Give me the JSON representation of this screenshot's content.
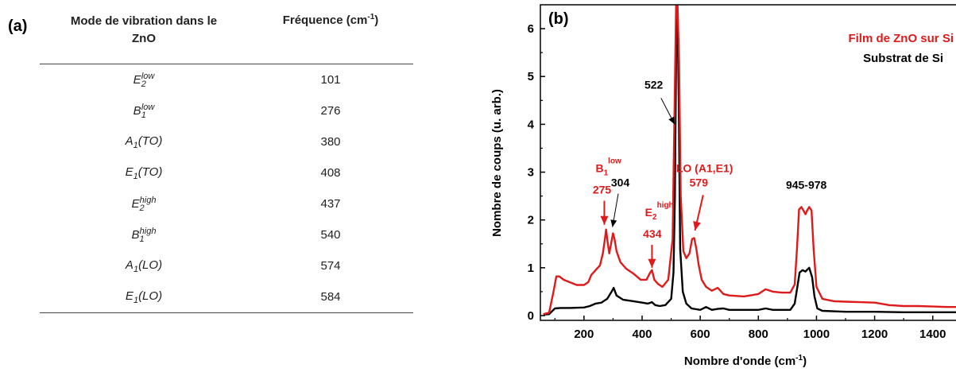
{
  "table_panel": {
    "panel_label": "(a)",
    "header_mode_line1": "Mode de vibration dans le",
    "header_mode_line2": "ZnO",
    "header_freq": "Fréquence (cm",
    "header_freq_sup": "-1",
    "header_freq_close": ")",
    "rows": [
      {
        "base": "E",
        "sub": "2",
        "sup": "low",
        "rest": "",
        "freq": "101"
      },
      {
        "base": "B",
        "sub": "1",
        "sup": "low",
        "rest": "",
        "freq": "276"
      },
      {
        "base": "A",
        "sub": "1",
        "sup": "",
        "rest": "(TO)",
        "freq": "380"
      },
      {
        "base": "E",
        "sub": "1",
        "sup": "",
        "rest": "(TO)",
        "freq": "408"
      },
      {
        "base": "E",
        "sub": "2",
        "sup": "high",
        "rest": "",
        "freq": "437"
      },
      {
        "base": "B",
        "sub": "1",
        "sup": "high",
        "rest": "",
        "freq": "540"
      },
      {
        "base": "A",
        "sub": "1",
        "sup": "",
        "rest": "(LO)",
        "freq": "574"
      },
      {
        "base": "E",
        "sub": "1",
        "sup": "",
        "rest": "(LO)",
        "freq": "584"
      }
    ]
  },
  "chart_data": {
    "type": "line",
    "panel_label": "(b)",
    "xlabel": "Nombre d'onde (cm",
    "xlabel_sup": "-1",
    "xlabel_close": ")",
    "ylabel": "Nombre de coups (u. arb.)",
    "xlim": [
      50,
      1480
    ],
    "ylim": [
      -0.1,
      6.5
    ],
    "xticks": [
      200,
      400,
      600,
      800,
      1000,
      1200,
      1400
    ],
    "yticks": [
      0,
      1,
      2,
      3,
      4,
      5,
      6
    ],
    "legend_position": "top-right",
    "series": [
      {
        "name": "Film de ZnO sur Si",
        "color": "#e0191b",
        "points": [
          [
            60,
            0.03
          ],
          [
            80,
            0.06
          ],
          [
            95,
            0.5
          ],
          [
            105,
            0.82
          ],
          [
            115,
            0.82
          ],
          [
            130,
            0.75
          ],
          [
            150,
            0.7
          ],
          [
            175,
            0.64
          ],
          [
            200,
            0.64
          ],
          [
            215,
            0.7
          ],
          [
            225,
            0.85
          ],
          [
            240,
            0.95
          ],
          [
            255,
            1.05
          ],
          [
            265,
            1.3
          ],
          [
            272,
            1.6
          ],
          [
            276,
            1.8
          ],
          [
            281,
            1.55
          ],
          [
            287,
            1.3
          ],
          [
            293,
            1.5
          ],
          [
            300,
            1.72
          ],
          [
            305,
            1.6
          ],
          [
            312,
            1.35
          ],
          [
            325,
            1.12
          ],
          [
            345,
            0.98
          ],
          [
            370,
            0.88
          ],
          [
            395,
            0.75
          ],
          [
            415,
            0.75
          ],
          [
            428,
            0.9
          ],
          [
            434,
            0.95
          ],
          [
            442,
            0.75
          ],
          [
            455,
            0.66
          ],
          [
            470,
            0.6
          ],
          [
            490,
            0.75
          ],
          [
            505,
            1.6
          ],
          [
            512,
            4.5
          ],
          [
            517,
            6.5
          ],
          [
            522,
            6.5
          ],
          [
            527,
            5.3
          ],
          [
            533,
            2.5
          ],
          [
            542,
            1.35
          ],
          [
            552,
            1.2
          ],
          [
            563,
            1.3
          ],
          [
            572,
            1.6
          ],
          [
            579,
            1.62
          ],
          [
            586,
            1.42
          ],
          [
            595,
            1.05
          ],
          [
            605,
            0.75
          ],
          [
            620,
            0.6
          ],
          [
            640,
            0.52
          ],
          [
            660,
            0.58
          ],
          [
            680,
            0.45
          ],
          [
            700,
            0.42
          ],
          [
            750,
            0.4
          ],
          [
            800,
            0.45
          ],
          [
            825,
            0.55
          ],
          [
            850,
            0.5
          ],
          [
            880,
            0.48
          ],
          [
            910,
            0.48
          ],
          [
            925,
            0.65
          ],
          [
            933,
            1.4
          ],
          [
            940,
            2.22
          ],
          [
            948,
            2.27
          ],
          [
            955,
            2.2
          ],
          [
            962,
            2.12
          ],
          [
            968,
            2.2
          ],
          [
            975,
            2.27
          ],
          [
            983,
            2.2
          ],
          [
            990,
            1.4
          ],
          [
            1000,
            0.6
          ],
          [
            1020,
            0.35
          ],
          [
            1060,
            0.3
          ],
          [
            1100,
            0.29
          ],
          [
            1150,
            0.28
          ],
          [
            1200,
            0.27
          ],
          [
            1250,
            0.22
          ],
          [
            1300,
            0.2
          ],
          [
            1350,
            0.2
          ],
          [
            1400,
            0.19
          ],
          [
            1450,
            0.18
          ],
          [
            1480,
            0.18
          ]
        ]
      },
      {
        "name": "Substrat de Si",
        "color": "#000000",
        "points": [
          [
            60,
            0.02
          ],
          [
            80,
            0.03
          ],
          [
            100,
            0.15
          ],
          [
            120,
            0.16
          ],
          [
            150,
            0.16
          ],
          [
            200,
            0.17
          ],
          [
            220,
            0.2
          ],
          [
            240,
            0.25
          ],
          [
            260,
            0.27
          ],
          [
            280,
            0.35
          ],
          [
            295,
            0.5
          ],
          [
            302,
            0.58
          ],
          [
            312,
            0.42
          ],
          [
            335,
            0.33
          ],
          [
            370,
            0.3
          ],
          [
            400,
            0.27
          ],
          [
            420,
            0.25
          ],
          [
            434,
            0.28
          ],
          [
            445,
            0.22
          ],
          [
            460,
            0.2
          ],
          [
            480,
            0.22
          ],
          [
            500,
            0.35
          ],
          [
            508,
            0.9
          ],
          [
            513,
            2.5
          ],
          [
            518,
            6.3
          ],
          [
            522,
            6.28
          ],
          [
            526,
            4.5
          ],
          [
            531,
            1.4
          ],
          [
            540,
            0.5
          ],
          [
            552,
            0.25
          ],
          [
            570,
            0.15
          ],
          [
            600,
            0.12
          ],
          [
            620,
            0.18
          ],
          [
            640,
            0.12
          ],
          [
            660,
            0.14
          ],
          [
            680,
            0.15
          ],
          [
            700,
            0.12
          ],
          [
            800,
            0.12
          ],
          [
            825,
            0.15
          ],
          [
            850,
            0.12
          ],
          [
            910,
            0.12
          ],
          [
            925,
            0.25
          ],
          [
            933,
            0.55
          ],
          [
            942,
            0.9
          ],
          [
            952,
            0.95
          ],
          [
            962,
            0.92
          ],
          [
            975,
            1.0
          ],
          [
            985,
            0.8
          ],
          [
            993,
            0.4
          ],
          [
            1003,
            0.15
          ],
          [
            1020,
            0.1
          ],
          [
            1100,
            0.08
          ],
          [
            1200,
            0.08
          ],
          [
            1300,
            0.07
          ],
          [
            1400,
            0.07
          ],
          [
            1480,
            0.07
          ]
        ]
      }
    ],
    "annotations": [
      {
        "id": "ann-522",
        "text": "522",
        "color": "#000000"
      },
      {
        "id": "ann-304",
        "text": "304",
        "color": "#000000"
      },
      {
        "id": "ann-945-978",
        "text": "945-978",
        "color": "#000000"
      },
      {
        "id": "ann-b1",
        "base": "B",
        "sub": "1",
        "sup": "low",
        "value": "275",
        "color": "#e0191b"
      },
      {
        "id": "ann-e2",
        "base": "E",
        "sub": "2",
        "sup": "high",
        "value": "434",
        "color": "#e0191b"
      },
      {
        "id": "ann-lo",
        "text": "LO (A1,E1)",
        "value": "579",
        "color": "#e0191b"
      }
    ]
  }
}
